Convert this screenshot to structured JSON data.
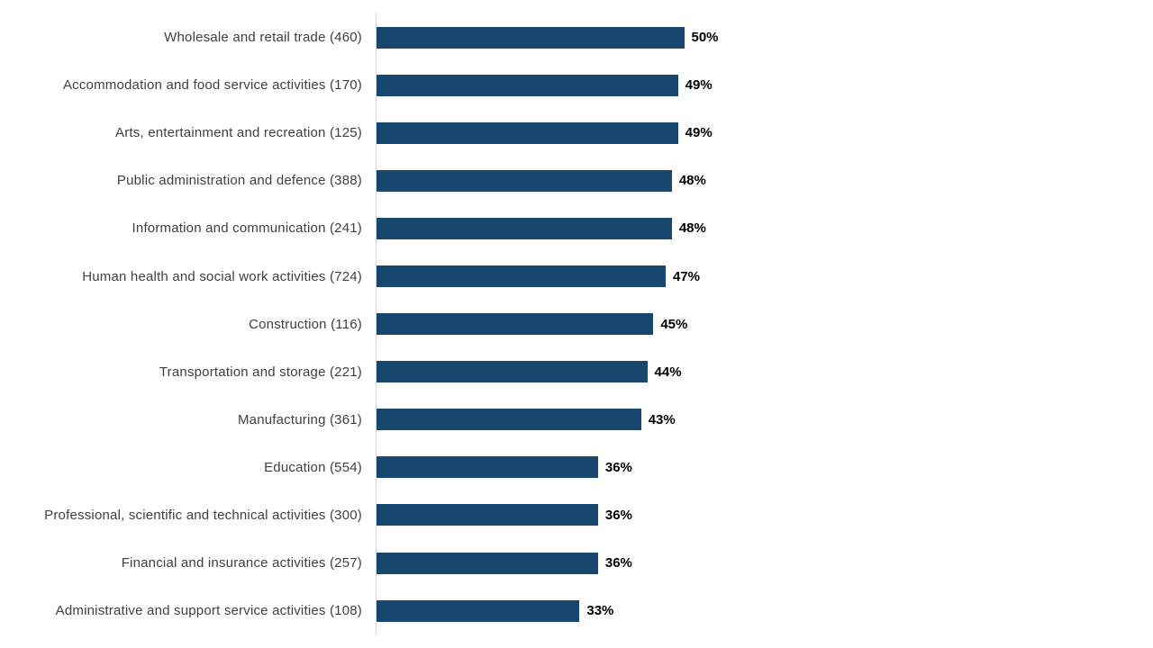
{
  "chart_data": {
    "type": "bar",
    "orientation": "horizontal",
    "title": "",
    "categories": [
      "Wholesale and retail trade (460)",
      "Accommodation and food service activities (170)",
      "Arts, entertainment and recreation (125)",
      "Public administration and defence (388)",
      "Information and communication (241)",
      "Human health and social work activities (724)",
      "Construction (116)",
      "Transportation and storage (221)",
      "Manufacturing (361)",
      "Education (554)",
      "Professional, scientific and technical activities (300)",
      "Financial and insurance activities (257)",
      "Administrative and support service activities (108)"
    ],
    "category_counts": [
      460,
      170,
      125,
      388,
      241,
      724,
      116,
      221,
      361,
      554,
      300,
      257,
      108
    ],
    "values": [
      50,
      49,
      49,
      48,
      48,
      47,
      45,
      44,
      43,
      36,
      36,
      36,
      33
    ],
    "value_suffix": "%",
    "value_labels": [
      "50%",
      "49%",
      "49%",
      "48%",
      "48%",
      "47%",
      "45%",
      "44%",
      "43%",
      "36%",
      "36%",
      "36%",
      "33%"
    ],
    "xlabel": "",
    "ylabel": "",
    "legend": null,
    "gridlines": false,
    "bar_color": "#17466e",
    "category_label_color": "#404040",
    "value_label_color": "#000000",
    "baseline_color": "#d9d9d9",
    "background_color": "#ffffff"
  }
}
